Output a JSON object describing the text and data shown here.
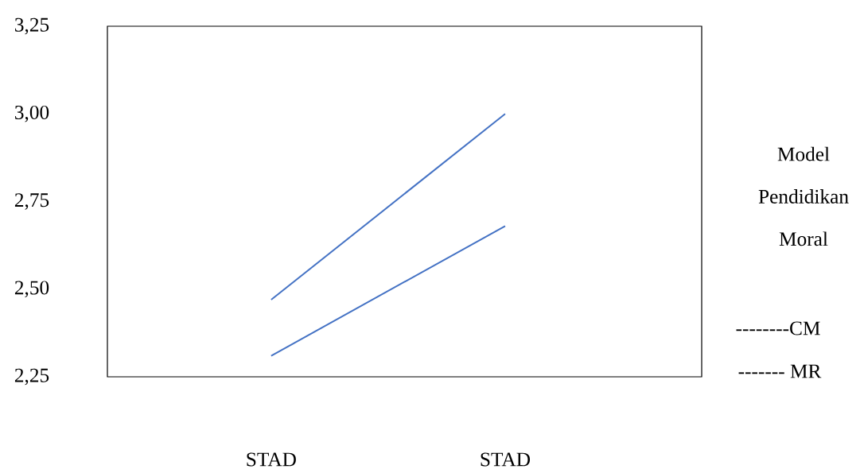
{
  "chart_data": {
    "type": "line",
    "categories": [
      "STAD",
      "STAD"
    ],
    "series": [
      {
        "color": "#4472c4",
        "values": [
          2.47,
          3.0
        ]
      },
      {
        "color": "#4472c4",
        "values": [
          2.31,
          2.68
        ]
      }
    ],
    "ylim": [
      2.25,
      3.25
    ],
    "yticks": [
      {
        "value": 2.25,
        "label": "2,25"
      },
      {
        "value": 2.5,
        "label": "2,50"
      },
      {
        "value": 2.75,
        "label": "2,75"
      },
      {
        "value": 3.0,
        "label": "3,00"
      },
      {
        "value": 3.25,
        "label": "3,25"
      }
    ],
    "annotations": [
      "Model Pendidikan Moral",
      "--------CM",
      "------- MR"
    ]
  }
}
